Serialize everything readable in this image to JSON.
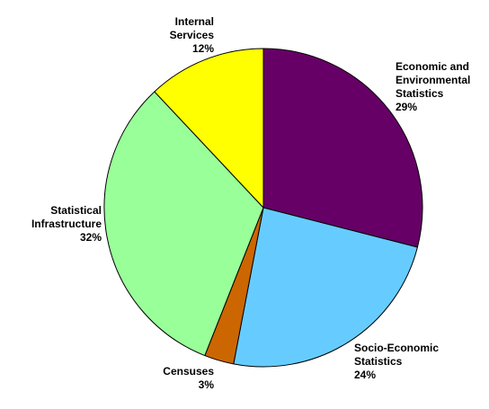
{
  "chart_data": {
    "type": "pie",
    "start_angle_deg": 0,
    "direction": "clockwise",
    "slices": [
      {
        "label": "Economic and Environmental Statistics",
        "label_lines": [
          "Economic and",
          "Environmental",
          "Statistics"
        ],
        "percent_label": "29%",
        "value": 29,
        "color": "#660066"
      },
      {
        "label": "Socio-Economic Statistics",
        "label_lines": [
          "Socio-Economic",
          "Statistics"
        ],
        "percent_label": "24%",
        "value": 24,
        "color": "#66ccff"
      },
      {
        "label": "Censuses",
        "label_lines": [
          "Censuses"
        ],
        "percent_label": "3%",
        "value": 3,
        "color": "#cc6600"
      },
      {
        "label": "Statistical Infrastructure",
        "label_lines": [
          "Statistical",
          "Infrastructure"
        ],
        "percent_label": "32%",
        "value": 32,
        "color": "#99ff99"
      },
      {
        "label": "Internal Services",
        "label_lines": [
          "Internal",
          "Services"
        ],
        "percent_label": "12%",
        "value": 12,
        "color": "#ffff00"
      }
    ]
  }
}
